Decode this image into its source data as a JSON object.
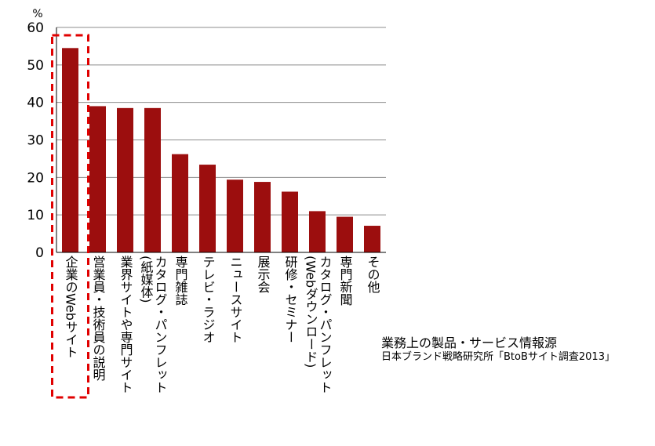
{
  "chart_data": {
    "type": "bar",
    "unit_label": "%",
    "categories": [
      "企業のWebサイト",
      "営業員・技術員の説明",
      "業界サイトや専門サイト",
      "カタログ・パンフレット\n(紙媒体)",
      "専門雑誌",
      "テレビ・ラジオ",
      "ニュースサイト",
      "展示会",
      "研修・セミナー",
      "カタログ・パンフレット\n(Webダウンロード)",
      "専門新聞",
      "その他"
    ],
    "values": [
      54.5,
      39.0,
      38.5,
      38.5,
      26.2,
      23.4,
      19.4,
      18.8,
      16.2,
      11.0,
      9.5,
      7.1
    ],
    "ylim": [
      0,
      60
    ],
    "yticks": [
      0,
      10,
      20,
      30,
      40,
      50,
      60
    ],
    "bar_color": "#9c0e0e",
    "highlight_color": "#e00000",
    "highlighted_category": "企業のWebサイト",
    "grid": true
  },
  "caption": {
    "title": "業務上の製品・サービス情報源",
    "source": "日本ブランド戦略研究所「BtoBサイト調査2013」"
  }
}
